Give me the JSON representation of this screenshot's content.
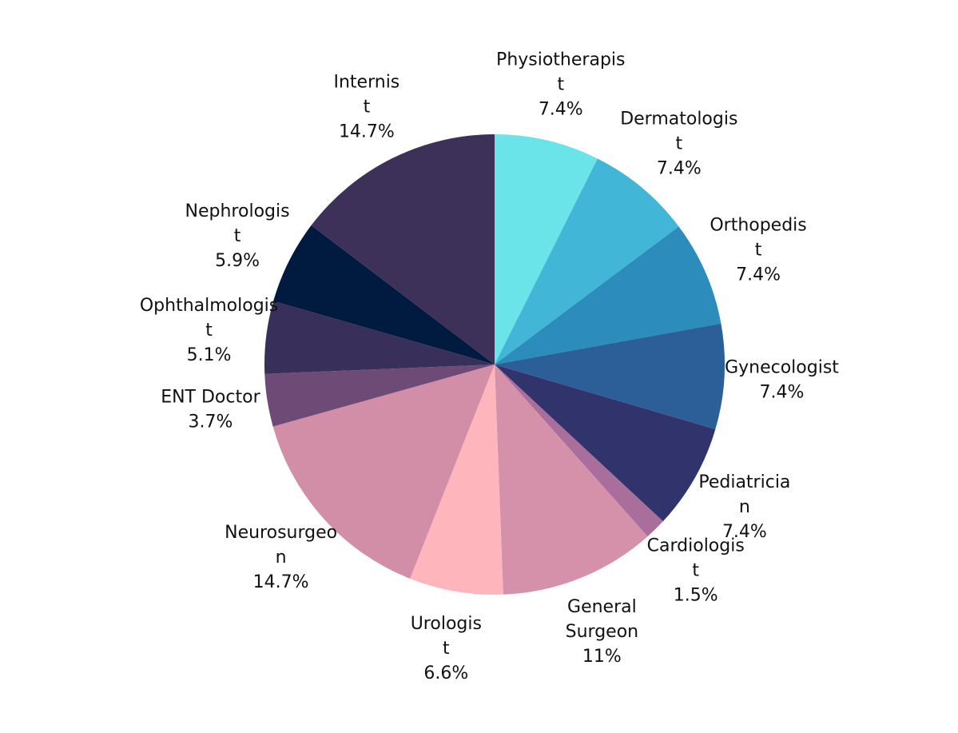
{
  "chart_data": {
    "type": "pie",
    "title": "",
    "start_angle_deg": 0,
    "direction": "clockwise",
    "slices": [
      {
        "label_lines": [
          "Physiotherapis",
          "t"
        ],
        "value": 7.4,
        "value_label": "7.4%",
        "color": "#6ae4e8"
      },
      {
        "label_lines": [
          "Dermatologis",
          "t"
        ],
        "value": 7.4,
        "value_label": "7.4%",
        "color": "#42b6d6"
      },
      {
        "label_lines": [
          "Orthopedis",
          "t"
        ],
        "value": 7.4,
        "value_label": "7.4%",
        "color": "#2c8cbc"
      },
      {
        "label_lines": [
          "Gynecologist"
        ],
        "value": 7.4,
        "value_label": "7.4%",
        "color": "#2c5f98"
      },
      {
        "label_lines": [
          "Pediatricia",
          "n"
        ],
        "value": 7.4,
        "value_label": "7.4%",
        "color": "#31346c"
      },
      {
        "label_lines": [
          "Cardiologis",
          "t"
        ],
        "value": 1.5,
        "value_label": "1.5%",
        "color": "#a96e9c"
      },
      {
        "label_lines": [
          "General",
          "Surgeon"
        ],
        "value": 11,
        "value_label": "11%",
        "color": "#d590aa"
      },
      {
        "label_lines": [
          "Urologis",
          "t"
        ],
        "value": 6.6,
        "value_label": "6.6%",
        "color": "#feb5bc"
      },
      {
        "label_lines": [
          "Neurosurgeo",
          "n"
        ],
        "value": 14.7,
        "value_label": "14.7%",
        "color": "#d38ea7"
      },
      {
        "label_lines": [
          "ENT Doctor"
        ],
        "value": 3.7,
        "value_label": "3.7%",
        "color": "#6e4a76"
      },
      {
        "label_lines": [
          "Ophthalmologis",
          "t"
        ],
        "value": 5.1,
        "value_label": "5.1%",
        "color": "#38305b"
      },
      {
        "label_lines": [
          "Nephrologis",
          "t"
        ],
        "value": 5.9,
        "value_label": "5.9%",
        "color": "#001a40"
      },
      {
        "label_lines": [
          "Internis",
          "t"
        ],
        "value": 14.7,
        "value_label": "14.7%",
        "color": "#3e3159"
      }
    ]
  }
}
